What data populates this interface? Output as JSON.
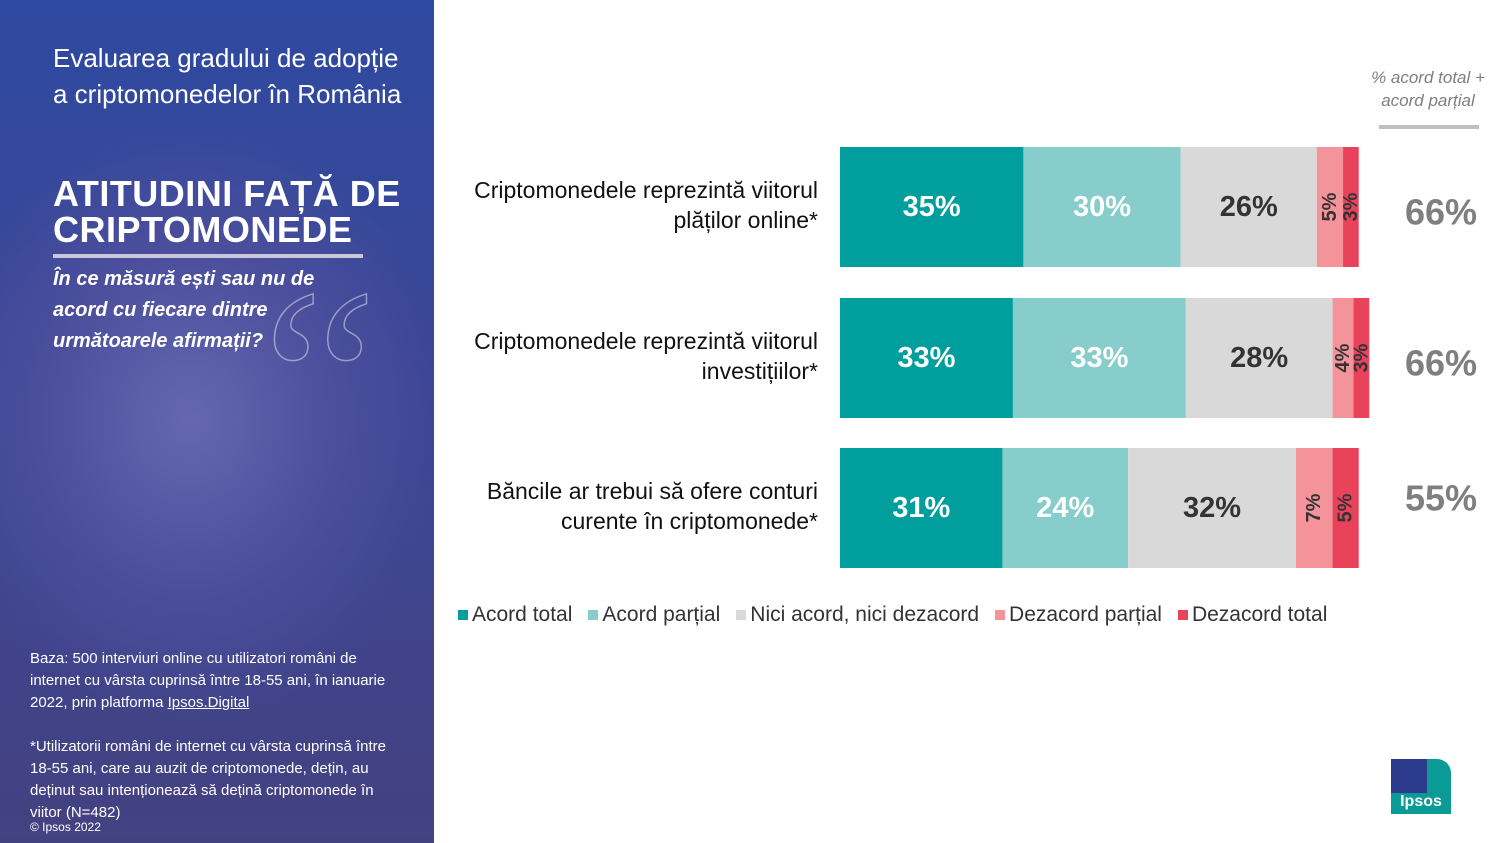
{
  "panel": {
    "title": "Evaluarea gradului de adopție a criptomonedelor în România",
    "headline": "ATITUDINI FAȚĂ DE CRIPTOMONEDE",
    "question": "În ce măsură ești sau nu de acord cu fiecare dintre următoarele afirmații?",
    "base": "Baza: 500 interviuri online cu utilizatori români de internet cu vârsta cuprinsă între 18-55 ani, în ianuarie 2022, prin platforma",
    "base_link": "Ipsos.Digital",
    "note": "*Utilizatorii români de internet cu vârsta cuprinsă între 18-55 ani, care au auzit de criptomonede, dețin, au deținut sau intenționează să dețină criptomonede în viitor (N=482)",
    "copyright": "© Ipsos 2022"
  },
  "logo": "Ipsos",
  "chart_data": {
    "type": "stacked_bar",
    "orientation": "horizontal",
    "categories": [
      "Criptomonedele reprezintă viitorul plăților online*",
      "Criptomonedele reprezintă viitorul investițiilor*",
      "Băncile ar trebui să ofere conturi curente în criptomonede*"
    ],
    "xlim": [
      0,
      100
    ],
    "series": [
      {
        "name": "Acord total",
        "color": "#009e9c",
        "values": [
          35,
          33,
          31
        ],
        "value_labels": [
          "35%",
          "33%",
          "31%"
        ]
      },
      {
        "name": "Acord parțial",
        "color": "#87cdcb",
        "values": [
          30,
          33,
          24
        ],
        "value_labels": [
          "30%",
          "33%",
          "24%"
        ]
      },
      {
        "name": "Nici acord, nici dezacord",
        "color": "#d9d9d9",
        "values": [
          26,
          28,
          32
        ],
        "value_labels": [
          "26%",
          "28%",
          "32%"
        ]
      },
      {
        "name": "Dezacord parțial",
        "color": "#f5939b",
        "values": [
          5,
          4,
          7
        ],
        "value_labels": [
          "5%",
          "4%",
          "7%"
        ]
      },
      {
        "name": "Dezacord total",
        "color": "#e8435b",
        "values": [
          3,
          3,
          5
        ],
        "value_labels": [
          "3%",
          "3%",
          "5%"
        ]
      }
    ],
    "totals_title": "% acord total + acord parțial",
    "totals": {
      "values": [
        66,
        66,
        55
      ],
      "value_labels": [
        "66%",
        "66%",
        "55%"
      ]
    }
  }
}
